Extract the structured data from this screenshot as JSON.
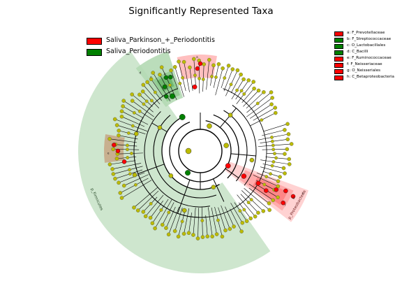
{
  "title": "Significantly Represented Taxa",
  "legend": [
    {
      "label": "Saliva_Parkinson_+_Periodontitis",
      "color": "#ff0000"
    },
    {
      "label": "Saliva_Periodontitis",
      "color": "#008000"
    }
  ],
  "taxa_legend": [
    {
      "label": "a: F_Prevotellaceae",
      "color": "#ff0000"
    },
    {
      "label": "b: F_Streptococcaceae",
      "color": "#008000"
    },
    {
      "label": "c: O_Lactobacillales",
      "color": "#008000"
    },
    {
      "label": "d: C_Bacilli",
      "color": "#008000"
    },
    {
      "label": "e: F_Ruminococcaceae",
      "color": "#ff0000"
    },
    {
      "label": "f: F_Neisseriaceae",
      "color": "#ff0000"
    },
    {
      "label": "g: O_Neisseriales",
      "color": "#ff0000"
    },
    {
      "label": "h: C_Betaproteobacteria",
      "color": "#ff0000"
    }
  ],
  "sector_labels": {
    "firmicutes": "p_Firmicutes",
    "proteobacteria": "p_Proteobacteria"
  },
  "clade_letters": [
    "a",
    "b",
    "c",
    "d",
    "e",
    "f",
    "g",
    "h"
  ],
  "colors": {
    "node": "#bbbb00",
    "red": "#ff0000",
    "green": "#008000",
    "shade_green": "#b4d9b4",
    "shade_red": "#ffb4b4",
    "shade_brown": "#c8a888"
  }
}
